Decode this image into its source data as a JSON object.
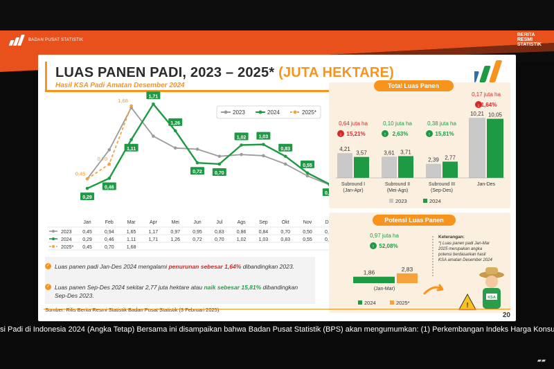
{
  "broadcast": {
    "org_label": "BADAN PUSAT STATISTIK",
    "brand_lines": [
      "BERITA",
      "RESMI",
      "STATISTIK"
    ],
    "ticker": "si Padi di Indonesia 2024 (Angka Tetap) Bersama ini disampaikan bahwa Badan Pusat Statistik (BPS) akan mengumumkan: (1) Perkembangan Indeks Harga Konsume",
    "colors": {
      "stripe": "#e8501c",
      "stripe_dark": "#7a2a10"
    }
  },
  "slide": {
    "title_main": "LUAS PANEN PADI, 2023 – 2025*",
    "title_unit": "(JUTA HEKTARE)",
    "subtitle": "Hasil KSA Padi Amatan Desember 2024",
    "notes": [
      {
        "pre": "Luas panen padi Jan-Des 2024 mengalami ",
        "hl": "penurunan sebesar 1,64%",
        "post": " dibandingkan 2023.",
        "tone": "red"
      },
      {
        "pre": "Luas panen Sep-Des 2024 sekitar 2,77 juta hektare atau ",
        "hl": "naik sebesar 15,81%",
        "post": " dibandingkan Sep-Des 2023.",
        "tone": "grn"
      }
    ],
    "source": "Sumber: Rilis Berita Resmi Statistik Badan Pusat Statistik (3 Februari 2025)",
    "page_number": "20"
  },
  "chart_data": [
    {
      "type": "line",
      "categories": [
        "Jan",
        "Feb",
        "Mar",
        "Apr",
        "Mei",
        "Jun",
        "Jul",
        "Ags",
        "Sep",
        "Okt",
        "Nov",
        "Des"
      ],
      "series": [
        {
          "name": "2023",
          "color": "#9b9b9b",
          "values": [
            0.45,
            0.94,
            1.65,
            1.17,
            0.97,
            0.95,
            0.83,
            0.86,
            0.84,
            0.7,
            0.5,
            0.35
          ]
        },
        {
          "name": "2024",
          "color": "#1e9a44",
          "values": [
            0.29,
            0.46,
            1.11,
            1.71,
            1.26,
            0.72,
            0.7,
            1.02,
            1.03,
            0.83,
            0.55,
            0.36
          ]
        },
        {
          "name": "2025*",
          "color": "#f7a13d",
          "dashed": true,
          "values": [
            0.45,
            0.7,
            1.68,
            null,
            null,
            null,
            null,
            null,
            null,
            null,
            null,
            null
          ]
        }
      ],
      "ylim": [
        0,
        1.9
      ],
      "table_rows": [
        {
          "label": "2023",
          "cells": [
            "0,45",
            "0,94",
            "1,65",
            "1,17",
            "0,97",
            "0,95",
            "0,83",
            "0,86",
            "0,84",
            "0,70",
            "0,50",
            "0,35"
          ]
        },
        {
          "label": "2024",
          "cells": [
            "0,29",
            "0,46",
            "1,11",
            "1,71",
            "1,26",
            "0,72",
            "0,70",
            "1,02",
            "1,03",
            "0,83",
            "0,55",
            "0,36"
          ]
        },
        {
          "label": "2025*",
          "cells": [
            "0,45",
            "0,70",
            "1,68",
            "",
            "",
            "",
            "",
            "",
            "",
            "",
            "",
            ""
          ]
        }
      ],
      "green_labels": [
        "0,29",
        "0,46",
        "1,11",
        "1,71",
        "1,26",
        "0,72",
        "0,70",
        "1,02",
        "1,03",
        "0,83",
        "0,55",
        "0,36"
      ],
      "orange_labels": [
        "0,45",
        "0,70",
        "1,68"
      ]
    },
    {
      "type": "bar",
      "title": "Total Luas Panen",
      "categories": [
        "Subround I\n(Jan-Apr)",
        "Subround II\n(Mei-Ags)",
        "Subround III\n(Sep-Des)",
        "Jan-Des"
      ],
      "series": [
        {
          "name": "2023",
          "color": "#c8c8c8",
          "values": [
            4.21,
            3.61,
            2.39,
            10.21
          ]
        },
        {
          "name": "2024",
          "color": "#1e9a44",
          "values": [
            3.57,
            3.71,
            2.77,
            10.05
          ]
        }
      ],
      "value_labels_2023": [
        "4,21",
        "3,61",
        "2,39",
        "10,21"
      ],
      "value_labels_2024": [
        "3,57",
        "3,71",
        "2,77",
        "10,05"
      ],
      "changes": [
        {
          "amount": "0,64 juta ha",
          "pct": "15,21%",
          "dir": "down"
        },
        {
          "amount": "0,10 juta ha",
          "pct": "2,63%",
          "dir": "up"
        },
        {
          "amount": "0,38 juta ha",
          "pct": "15,81%",
          "dir": "up"
        },
        {
          "amount": "0,17 juta ha",
          "pct": "1,64%",
          "dir": "down"
        }
      ]
    },
    {
      "type": "bar",
      "title": "Potensi Luas Panen",
      "categories": [
        "(Jan-Mar)"
      ],
      "series": [
        {
          "name": "2024",
          "color": "#1e9a44",
          "values": [
            1.86
          ]
        },
        {
          "name": "2025*",
          "color": "#f7a13d",
          "values": [
            2.83
          ]
        }
      ],
      "value_labels": [
        "1,86",
        "2,83"
      ],
      "change": {
        "amount": "0,97 juta ha",
        "pct": "52,08%",
        "dir": "up"
      },
      "note_title": "Keterangan:",
      "note_lines": [
        "*) Luas panen padi Jan-Mar",
        "2025 merupakan angka",
        "potensi berdasarkan hasil",
        "KSA amatan Desember 2024"
      ],
      "mascot_badge": "KSA"
    }
  ]
}
